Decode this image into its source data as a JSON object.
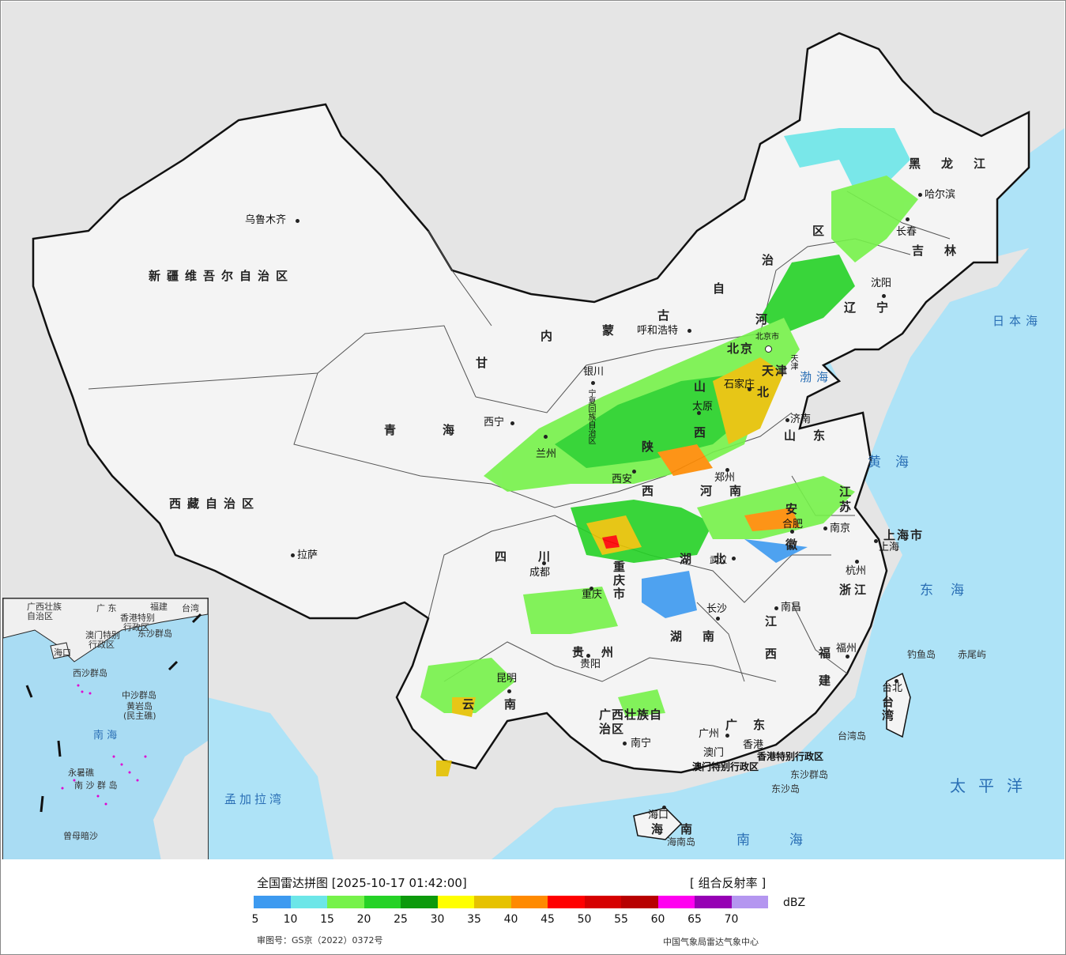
{
  "map": {
    "provinces": [
      {
        "id": "xinjiang",
        "text": "新疆维吾尔自治区"
      },
      {
        "id": "xizang",
        "text": "西藏自治区"
      },
      {
        "id": "qinghai-1",
        "text": "青"
      },
      {
        "id": "qinghai-2",
        "text": "海"
      },
      {
        "id": "gansu",
        "text": "甘"
      },
      {
        "id": "neimenggu-1",
        "text": "内"
      },
      {
        "id": "neimenggu-2",
        "text": "蒙"
      },
      {
        "id": "neimenggu-3",
        "text": "古"
      },
      {
        "id": "neimenggu-4",
        "text": "自"
      },
      {
        "id": "neimenggu-5",
        "text": "治"
      },
      {
        "id": "neimenggu-6",
        "text": "区"
      },
      {
        "id": "heilongjiang",
        "text": "黑龙江"
      },
      {
        "id": "jilin",
        "text": "吉林"
      },
      {
        "id": "liaoning",
        "text": "辽宁"
      },
      {
        "id": "hebei-1",
        "text": "河"
      },
      {
        "id": "hebei-2",
        "text": "北"
      },
      {
        "id": "beijing",
        "text": "北京"
      },
      {
        "id": "tianjin",
        "text": "天津"
      },
      {
        "id": "shanxi-1",
        "text": "山"
      },
      {
        "id": "shanxi-2",
        "text": "西"
      },
      {
        "id": "shaanxi-1",
        "text": "陕"
      },
      {
        "id": "shaanxi-2",
        "text": "西"
      },
      {
        "id": "shandong",
        "text": "山东"
      },
      {
        "id": "henan",
        "text": "河南"
      },
      {
        "id": "jiangsu",
        "text": "江苏"
      },
      {
        "id": "anhui",
        "text": "安徽"
      },
      {
        "id": "shanghai",
        "text": "上海市"
      },
      {
        "id": "zhejiang",
        "text": "浙江"
      },
      {
        "id": "hubei",
        "text": "湖北"
      },
      {
        "id": "chongqing",
        "text": "重庆市"
      },
      {
        "id": "sichuan",
        "text": "四川"
      },
      {
        "id": "guizhou",
        "text": "贵州"
      },
      {
        "id": "yunnan",
        "text": "云南"
      },
      {
        "id": "hunan",
        "text": "湖南"
      },
      {
        "id": "jiangxi",
        "text": "江西"
      },
      {
        "id": "fujian",
        "text": "福建"
      },
      {
        "id": "guangxi",
        "text": "广西壮族自治区"
      },
      {
        "id": "guangdong",
        "text": "广东"
      },
      {
        "id": "taiwan",
        "text": "台湾"
      },
      {
        "id": "hainan",
        "text": "海南"
      },
      {
        "id": "ningxia",
        "text": "宁夏回族自治区"
      },
      {
        "id": "hongkong",
        "text": "香港特别行政区"
      },
      {
        "id": "macau",
        "text": "澳门特别行政区"
      }
    ],
    "cities": [
      {
        "id": "urumqi",
        "text": "乌鲁木齐"
      },
      {
        "id": "lhasa",
        "text": "拉萨"
      },
      {
        "id": "xining",
        "text": "西宁"
      },
      {
        "id": "lanzhou",
        "text": "兰州"
      },
      {
        "id": "yinchuan",
        "text": "银川"
      },
      {
        "id": "hohhot",
        "text": "呼和浩特"
      },
      {
        "id": "harbin",
        "text": "哈尔滨"
      },
      {
        "id": "changchun",
        "text": "长春"
      },
      {
        "id": "shenyang",
        "text": "沈阳"
      },
      {
        "id": "beijing-city",
        "text": "北京市"
      },
      {
        "id": "tianjin-city",
        "text": "天津"
      },
      {
        "id": "shijiazhuang",
        "text": "石家庄"
      },
      {
        "id": "taiyuan",
        "text": "太原"
      },
      {
        "id": "jinan",
        "text": "济南"
      },
      {
        "id": "zhengzhou",
        "text": "郑州"
      },
      {
        "id": "xian",
        "text": "西安"
      },
      {
        "id": "nanjing",
        "text": "南京"
      },
      {
        "id": "hefei",
        "text": "合肥"
      },
      {
        "id": "shanghai-city",
        "text": "上海"
      },
      {
        "id": "hangzhou",
        "text": "杭州"
      },
      {
        "id": "wuhan",
        "text": "武汉"
      },
      {
        "id": "chengdu",
        "text": "成都"
      },
      {
        "id": "chongqing-city",
        "text": "重庆"
      },
      {
        "id": "guiyang",
        "text": "贵阳"
      },
      {
        "id": "kunming",
        "text": "昆明"
      },
      {
        "id": "changsha",
        "text": "长沙"
      },
      {
        "id": "nanchang",
        "text": "南昌"
      },
      {
        "id": "fuzhou",
        "text": "福州"
      },
      {
        "id": "taipei",
        "text": "台北"
      },
      {
        "id": "nanning",
        "text": "南宁"
      },
      {
        "id": "guangzhou",
        "text": "广州"
      },
      {
        "id": "hongkong-city",
        "text": "香港"
      },
      {
        "id": "macau-city",
        "text": "澳门"
      },
      {
        "id": "haikou",
        "text": "海口"
      }
    ],
    "seas": [
      {
        "id": "bohai",
        "text": "渤海"
      },
      {
        "id": "huanghai",
        "text": "黄海"
      },
      {
        "id": "donghai",
        "text": "东海"
      },
      {
        "id": "nanhai",
        "text": "南海"
      },
      {
        "id": "riben",
        "text": "日本海"
      },
      {
        "id": "taipingyang",
        "text": "太平洋"
      },
      {
        "id": "mengjiala",
        "text": "孟加拉湾"
      }
    ],
    "islands": [
      {
        "id": "diaoyu",
        "text": "钓鱼岛"
      },
      {
        "id": "chiwei",
        "text": "赤尾屿"
      },
      {
        "id": "taiwan-island",
        "text": "台湾岛"
      },
      {
        "id": "dongsha-qundao",
        "text": "东沙群岛"
      },
      {
        "id": "dongsha-dao",
        "text": "东沙岛"
      },
      {
        "id": "hainan-island",
        "text": "海南岛"
      }
    ],
    "inset_labels": [
      {
        "id": "in-guangxi",
        "text": "广西壮族"
      },
      {
        "id": "in-zizhiqu",
        "text": "自治区"
      },
      {
        "id": "in-guangdong",
        "text": "广 东"
      },
      {
        "id": "in-fujian",
        "text": "福建"
      },
      {
        "id": "in-taiwan",
        "text": "台湾"
      },
      {
        "id": "in-hk",
        "text": "香港特别"
      },
      {
        "id": "in-hk2",
        "text": "行政区"
      },
      {
        "id": "in-macau",
        "text": "澳门特别"
      },
      {
        "id": "in-macau2",
        "text": "行政区"
      },
      {
        "id": "in-dongsha",
        "text": "东沙群岛"
      },
      {
        "id": "in-haikou",
        "text": "海口"
      },
      {
        "id": "in-xisha",
        "text": "西沙群岛"
      },
      {
        "id": "in-zhongsha",
        "text": "中沙群岛"
      },
      {
        "id": "in-huangyan",
        "text": "黄岩岛"
      },
      {
        "id": "in-huangyan2",
        "text": "(民主礁)"
      },
      {
        "id": "in-nanhai",
        "text": "南 海"
      },
      {
        "id": "in-yongshu",
        "text": "永暑礁"
      },
      {
        "id": "in-nansha",
        "text": "南 沙 群 岛"
      },
      {
        "id": "in-zengmu",
        "text": "曾母暗沙"
      }
    ]
  },
  "legend": {
    "title": "全国雷达拼图 [2025-10-17 01:42:00]",
    "product": "[ 组合反射率 ]",
    "unit": "dBZ",
    "ticks": [
      "5",
      "10",
      "15",
      "20",
      "25",
      "30",
      "35",
      "40",
      "45",
      "50",
      "55",
      "60",
      "65",
      "70"
    ],
    "colors": [
      "#3d9af0",
      "#6ce6e8",
      "#76f24a",
      "#25d226",
      "#0c9a0c",
      "#ffff00",
      "#e6c200",
      "#ff8a00",
      "#ff0000",
      "#d60000",
      "#b80000",
      "#ff00f0",
      "#9600b4",
      "#b496f0"
    ],
    "review_no": "审图号：GS京（2022）0372号",
    "source": "中国气象局雷达气象中心"
  }
}
